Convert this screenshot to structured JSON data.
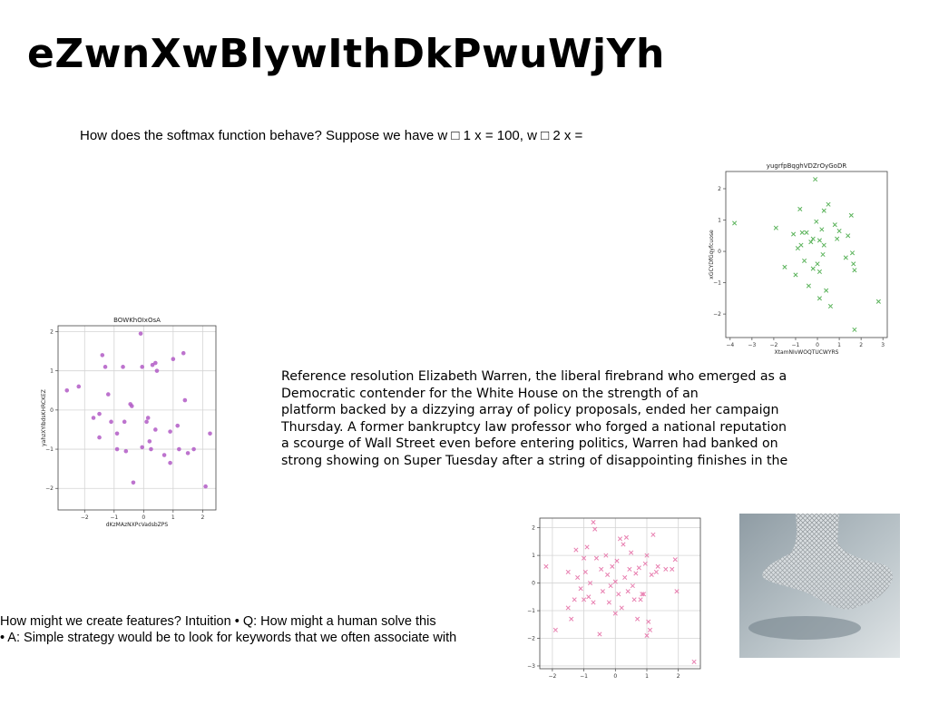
{
  "heading": "eZwnXwBlywIthDkPwuWjYh",
  "question_text": "How does the softmax function behave? Suppose we have w □ 1 x = 100, w □ 2 x =",
  "paragraph_lines": [
    "Reference resolution Elizabeth Warren, the liberal firebrand who emerged as a",
    "Democratic contender for the White House on the strength of an",
    "platform backed by a dizzying array of policy proposals, ended her campaign",
    "Thursday. A former bankruptcy law professor who forged a national reputation",
    "a scourge of Wall Street even before entering politics, Warren had banked on",
    "strong showing on Super Tuesday after a string of disappointing finishes in the"
  ],
  "features_lines": [
    "How might we create features? Intuition • Q: How might a human solve this",
    "• A: Simple strategy would be to look for keywords that we often associate with"
  ],
  "photo": {
    "icon": "mesh-sculpture-photo"
  },
  "chart_data": [
    {
      "type": "scatter",
      "title": "yugrfpBqghVDZrOyGoDR",
      "xlabel": "XtamNIvWOQTUCWYRS",
      "ylabel": "xGCYDfGqyfcuose",
      "marker": "x",
      "color": "#5bb35b",
      "xlim": [
        -4.2,
        3.2
      ],
      "ylim": [
        -2.75,
        2.55
      ],
      "xticks": [
        -4,
        -3,
        -2,
        -1,
        0,
        1,
        2,
        3
      ],
      "yticks": [
        -2,
        -1,
        0,
        1,
        2
      ],
      "grid": false,
      "points": [
        [
          -3.8,
          0.9
        ],
        [
          -1.9,
          0.75
        ],
        [
          -1.5,
          -0.5
        ],
        [
          -1.1,
          0.55
        ],
        [
          -1.0,
          -0.75
        ],
        [
          -0.9,
          0.1
        ],
        [
          -0.8,
          1.35
        ],
        [
          -0.75,
          0.2
        ],
        [
          -0.7,
          0.6
        ],
        [
          -0.6,
          -0.3
        ],
        [
          -0.5,
          0.6
        ],
        [
          -0.4,
          -1.1
        ],
        [
          -0.3,
          0.3
        ],
        [
          -0.2,
          0.4
        ],
        [
          -0.2,
          -0.55
        ],
        [
          -0.1,
          2.3
        ],
        [
          -0.05,
          0.95
        ],
        [
          0.0,
          -0.4
        ],
        [
          0.1,
          -1.5
        ],
        [
          0.1,
          0.35
        ],
        [
          0.1,
          -0.65
        ],
        [
          0.2,
          0.7
        ],
        [
          0.25,
          -0.1
        ],
        [
          0.3,
          0.2
        ],
        [
          0.3,
          1.3
        ],
        [
          0.4,
          -1.25
        ],
        [
          0.5,
          1.5
        ],
        [
          0.6,
          -1.75
        ],
        [
          0.8,
          0.85
        ],
        [
          0.9,
          0.4
        ],
        [
          1.0,
          0.65
        ],
        [
          1.3,
          -0.2
        ],
        [
          1.4,
          0.5
        ],
        [
          1.55,
          1.15
        ],
        [
          1.6,
          -0.05
        ],
        [
          1.65,
          -0.4
        ],
        [
          1.7,
          -0.6
        ],
        [
          1.7,
          -2.5
        ],
        [
          2.8,
          -1.6
        ]
      ]
    },
    {
      "type": "scatter",
      "title": "BOWKhOIxOsA",
      "xlabel": "dKzMAzNXPcVadsbZPS",
      "ylabel": "yahzXYIbdsKHRCKEZ",
      "marker": "o",
      "color": "#b15bc6",
      "xlim": [
        -2.9,
        2.45
      ],
      "ylim": [
        -2.55,
        2.15
      ],
      "xticks": [
        -2,
        -1,
        0,
        1,
        2
      ],
      "yticks": [
        -2,
        -1,
        0,
        1,
        2
      ],
      "grid": true,
      "points": [
        [
          -2.6,
          0.5
        ],
        [
          -2.2,
          0.6
        ],
        [
          -1.7,
          -0.2
        ],
        [
          -1.5,
          -0.1
        ],
        [
          -1.5,
          -0.7
        ],
        [
          -1.4,
          1.4
        ],
        [
          -1.3,
          1.1
        ],
        [
          -1.2,
          0.4
        ],
        [
          -1.1,
          -0.3
        ],
        [
          -0.9,
          -0.6
        ],
        [
          -0.9,
          -1.0
        ],
        [
          -0.7,
          1.1
        ],
        [
          -0.65,
          -0.3
        ],
        [
          -0.6,
          -1.05
        ],
        [
          -0.45,
          0.15
        ],
        [
          -0.4,
          0.1
        ],
        [
          -0.35,
          -1.85
        ],
        [
          -0.1,
          1.95
        ],
        [
          -0.05,
          1.1
        ],
        [
          -0.05,
          -0.95
        ],
        [
          0.1,
          -0.3
        ],
        [
          0.15,
          -0.2
        ],
        [
          0.2,
          -0.8
        ],
        [
          0.25,
          -1.0
        ],
        [
          0.3,
          1.15
        ],
        [
          0.4,
          -0.5
        ],
        [
          0.4,
          1.2
        ],
        [
          0.45,
          1.0
        ],
        [
          0.7,
          -1.15
        ],
        [
          0.9,
          -1.35
        ],
        [
          0.9,
          -0.55
        ],
        [
          1.0,
          1.3
        ],
        [
          1.15,
          -0.4
        ],
        [
          1.2,
          -1.0
        ],
        [
          1.35,
          1.45
        ],
        [
          1.4,
          0.25
        ],
        [
          1.5,
          -1.1
        ],
        [
          1.7,
          -1.0
        ],
        [
          2.1,
          -1.95
        ],
        [
          2.25,
          -0.6
        ]
      ]
    },
    {
      "type": "scatter",
      "title": "",
      "xlabel": "",
      "ylabel": "",
      "marker": "x",
      "color": "#e87fb0",
      "xlim": [
        -2.4,
        2.7
      ],
      "ylim": [
        -3.1,
        2.35
      ],
      "xticks": [
        -2,
        -1,
        0,
        1,
        2
      ],
      "yticks": [
        -3,
        -2,
        -1,
        0,
        1,
        2
      ],
      "grid": true,
      "points": [
        [
          -2.2,
          0.6
        ],
        [
          -1.9,
          -1.7
        ],
        [
          -1.5,
          0.4
        ],
        [
          -1.5,
          -0.9
        ],
        [
          -1.4,
          -1.3
        ],
        [
          -1.3,
          -0.6
        ],
        [
          -1.25,
          1.2
        ],
        [
          -1.2,
          0.2
        ],
        [
          -1.1,
          -0.2
        ],
        [
          -1.0,
          -0.6
        ],
        [
          -1.0,
          0.9
        ],
        [
          -0.95,
          0.4
        ],
        [
          -0.9,
          1.3
        ],
        [
          -0.85,
          -0.5
        ],
        [
          -0.8,
          0.0
        ],
        [
          -0.7,
          -0.7
        ],
        [
          -0.7,
          2.2
        ],
        [
          -0.65,
          1.95
        ],
        [
          -0.6,
          0.9
        ],
        [
          -0.5,
          -1.85
        ],
        [
          -0.45,
          0.5
        ],
        [
          -0.4,
          -0.3
        ],
        [
          -0.3,
          1.0
        ],
        [
          -0.25,
          0.3
        ],
        [
          -0.2,
          -0.7
        ],
        [
          -0.15,
          -0.1
        ],
        [
          -0.1,
          0.6
        ],
        [
          0.0,
          0.05
        ],
        [
          0.0,
          -1.1
        ],
        [
          0.05,
          0.8
        ],
        [
          0.1,
          -0.4
        ],
        [
          0.15,
          1.6
        ],
        [
          0.2,
          -0.9
        ],
        [
          0.25,
          1.4
        ],
        [
          0.3,
          0.2
        ],
        [
          0.35,
          1.65
        ],
        [
          0.4,
          -0.3
        ],
        [
          0.45,
          0.5
        ],
        [
          0.5,
          1.1
        ],
        [
          0.55,
          -0.1
        ],
        [
          0.6,
          -0.6
        ],
        [
          0.65,
          0.35
        ],
        [
          0.7,
          -1.3
        ],
        [
          0.75,
          0.55
        ],
        [
          0.8,
          -0.6
        ],
        [
          0.85,
          -0.4
        ],
        [
          0.9,
          -0.4
        ],
        [
          0.95,
          0.7
        ],
        [
          1.0,
          1.0
        ],
        [
          1.0,
          -1.9
        ],
        [
          1.05,
          -1.4
        ],
        [
          1.1,
          -1.7
        ],
        [
          1.15,
          0.3
        ],
        [
          1.2,
          1.75
        ],
        [
          1.3,
          0.4
        ],
        [
          1.35,
          0.6
        ],
        [
          1.6,
          0.5
        ],
        [
          1.8,
          0.5
        ],
        [
          1.9,
          0.85
        ],
        [
          1.95,
          -0.3
        ],
        [
          2.5,
          -2.85
        ]
      ]
    }
  ]
}
